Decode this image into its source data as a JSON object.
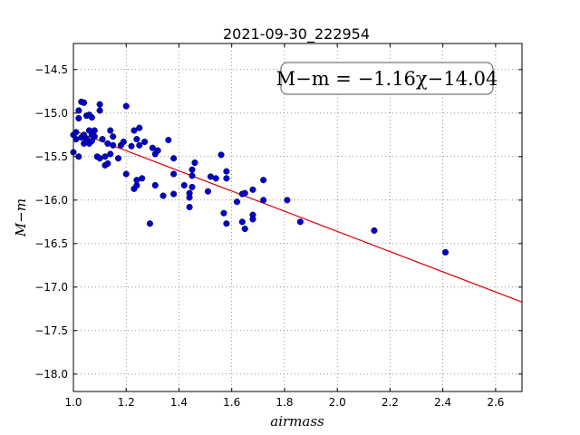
{
  "chart_data": {
    "type": "scatter",
    "title": "2021-09-30_222954",
    "xlabel": "airmass",
    "ylabel": "M−m",
    "xlim": [
      1.0,
      2.7
    ],
    "ylim": [
      -18.2,
      -14.2
    ],
    "x_ticks": [
      1.0,
      1.2,
      1.4,
      1.6,
      1.8,
      2.0,
      2.2,
      2.4,
      2.6
    ],
    "x_tick_labels": [
      "1.0",
      "1.2",
      "1.4",
      "1.6",
      "1.8",
      "2.0",
      "2.2",
      "2.4",
      "2.6"
    ],
    "y_ticks": [
      -14.5,
      -15.0,
      -15.5,
      -16.0,
      -16.5,
      -17.0,
      -17.5,
      -18.0
    ],
    "y_tick_labels": [
      "−14.5",
      "−15.0",
      "−15.5",
      "−16.0",
      "−16.5",
      "−17.0",
      "−17.5",
      "−18.0"
    ],
    "grid": true,
    "annotation": "M−m = −1.16χ−14.04",
    "fit": {
      "slope": -1.16,
      "intercept": -14.04,
      "color": "#dd0000"
    },
    "point_color": "#0000cc",
    "points": [
      [
        1.0,
        -15.25
      ],
      [
        1.0,
        -15.45
      ],
      [
        1.01,
        -15.22
      ],
      [
        1.01,
        -15.3
      ],
      [
        1.02,
        -15.5
      ],
      [
        1.02,
        -14.97
      ],
      [
        1.02,
        -15.06
      ],
      [
        1.03,
        -14.87
      ],
      [
        1.03,
        -15.28
      ],
      [
        1.04,
        -14.88
      ],
      [
        1.04,
        -15.25
      ],
      [
        1.04,
        -15.35
      ],
      [
        1.05,
        -15.03
      ],
      [
        1.05,
        -15.3
      ],
      [
        1.05,
        -15.33
      ],
      [
        1.06,
        -15.2
      ],
      [
        1.06,
        -15.35
      ],
      [
        1.06,
        -15.02
      ],
      [
        1.07,
        -15.05
      ],
      [
        1.07,
        -15.25
      ],
      [
        1.07,
        -15.32
      ],
      [
        1.08,
        -15.27
      ],
      [
        1.08,
        -15.2
      ],
      [
        1.09,
        -15.5
      ],
      [
        1.1,
        -15.52
      ],
      [
        1.1,
        -14.97
      ],
      [
        1.1,
        -14.9
      ],
      [
        1.11,
        -15.3
      ],
      [
        1.12,
        -15.6
      ],
      [
        1.12,
        -15.5
      ],
      [
        1.13,
        -15.35
      ],
      [
        1.13,
        -15.58
      ],
      [
        1.14,
        -15.47
      ],
      [
        1.14,
        -15.2
      ],
      [
        1.15,
        -15.27
      ],
      [
        1.15,
        -15.37
      ],
      [
        1.17,
        -15.52
      ],
      [
        1.18,
        -15.37
      ],
      [
        1.19,
        -15.33
      ],
      [
        1.2,
        -14.92
      ],
      [
        1.2,
        -15.7
      ],
      [
        1.22,
        -15.38
      ],
      [
        1.23,
        -15.2
      ],
      [
        1.23,
        -15.87
      ],
      [
        1.24,
        -15.3
      ],
      [
        1.24,
        -15.83
      ],
      [
        1.24,
        -15.77
      ],
      [
        1.25,
        -15.17
      ],
      [
        1.25,
        -15.37
      ],
      [
        1.26,
        -15.75
      ],
      [
        1.27,
        -15.33
      ],
      [
        1.29,
        -16.27
      ],
      [
        1.3,
        -15.4
      ],
      [
        1.31,
        -15.83
      ],
      [
        1.31,
        -15.47
      ],
      [
        1.32,
        -15.43
      ],
      [
        1.34,
        -15.95
      ],
      [
        1.36,
        -15.31
      ],
      [
        1.38,
        -15.52
      ],
      [
        1.38,
        -15.7
      ],
      [
        1.38,
        -15.93
      ],
      [
        1.42,
        -15.83
      ],
      [
        1.44,
        -16.08
      ],
      [
        1.44,
        -15.92
      ],
      [
        1.44,
        -15.97
      ],
      [
        1.45,
        -15.72
      ],
      [
        1.45,
        -15.65
      ],
      [
        1.45,
        -15.85
      ],
      [
        1.46,
        -15.57
      ],
      [
        1.51,
        -15.9
      ],
      [
        1.52,
        -15.73
      ],
      [
        1.54,
        -15.75
      ],
      [
        1.56,
        -15.48
      ],
      [
        1.57,
        -16.15
      ],
      [
        1.58,
        -16.27
      ],
      [
        1.58,
        -15.75
      ],
      [
        1.58,
        -15.67
      ],
      [
        1.62,
        -16.02
      ],
      [
        1.64,
        -16.25
      ],
      [
        1.64,
        -15.93
      ],
      [
        1.65,
        -15.92
      ],
      [
        1.65,
        -16.33
      ],
      [
        1.68,
        -16.17
      ],
      [
        1.68,
        -16.22
      ],
      [
        1.68,
        -15.88
      ],
      [
        1.72,
        -16.0
      ],
      [
        1.72,
        -15.77
      ],
      [
        1.81,
        -16.0
      ],
      [
        1.86,
        -16.25
      ],
      [
        2.14,
        -16.35
      ],
      [
        2.41,
        -16.6
      ]
    ]
  }
}
